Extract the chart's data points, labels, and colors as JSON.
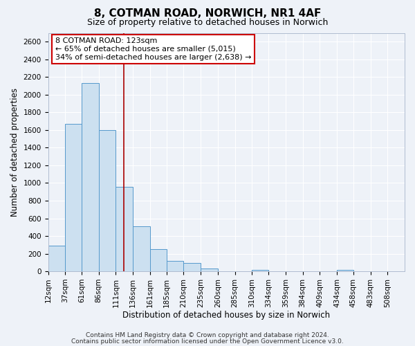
{
  "title": "8, COTMAN ROAD, NORWICH, NR1 4AF",
  "subtitle": "Size of property relative to detached houses in Norwich",
  "xlabel": "Distribution of detached houses by size in Norwich",
  "ylabel": "Number of detached properties",
  "bin_labels": [
    "12sqm",
    "37sqm",
    "61sqm",
    "86sqm",
    "111sqm",
    "136sqm",
    "161sqm",
    "185sqm",
    "210sqm",
    "235sqm",
    "260sqm",
    "285sqm",
    "310sqm",
    "334sqm",
    "359sqm",
    "384sqm",
    "409sqm",
    "434sqm",
    "458sqm",
    "483sqm",
    "508sqm"
  ],
  "bin_edges": [
    12,
    37,
    61,
    86,
    111,
    136,
    161,
    185,
    210,
    235,
    260,
    285,
    310,
    334,
    359,
    384,
    409,
    434,
    458,
    483,
    508,
    533
  ],
  "bar_heights": [
    290,
    1670,
    2130,
    1600,
    960,
    510,
    250,
    120,
    95,
    30,
    0,
    0,
    15,
    0,
    0,
    0,
    0,
    20,
    0,
    0,
    0
  ],
  "bar_color": "#cce0f0",
  "bar_edge_color": "#5599cc",
  "vline_x": 123,
  "vline_color": "#aa0000",
  "annotation_text": "8 COTMAN ROAD: 123sqm\n← 65% of detached houses are smaller (5,015)\n34% of semi-detached houses are larger (2,638) →",
  "annotation_box_color": "white",
  "annotation_box_edge": "#cc0000",
  "ylim": [
    0,
    2700
  ],
  "yticks": [
    0,
    200,
    400,
    600,
    800,
    1000,
    1200,
    1400,
    1600,
    1800,
    2000,
    2200,
    2400,
    2600
  ],
  "footer_line1": "Contains HM Land Registry data © Crown copyright and database right 2024.",
  "footer_line2": "Contains public sector information licensed under the Open Government Licence v3.0.",
  "bg_color": "#eef2f8",
  "plot_bg_color": "#eef2f8",
  "grid_color": "#ffffff",
  "title_fontsize": 11,
  "subtitle_fontsize": 9,
  "axis_label_fontsize": 8.5,
  "tick_fontsize": 7.5,
  "footer_fontsize": 6.5,
  "ann_fontsize": 8
}
